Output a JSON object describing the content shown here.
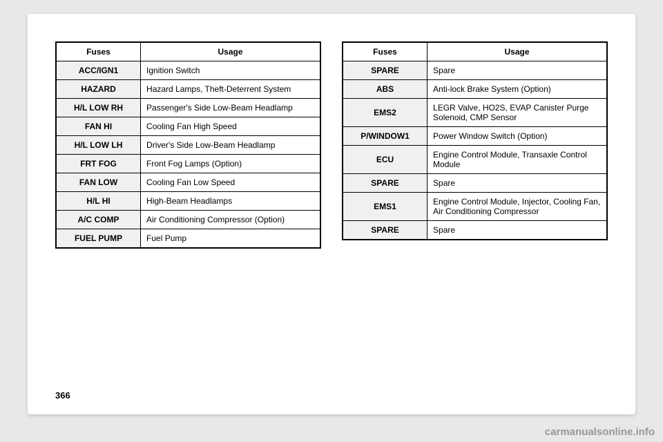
{
  "page_number": "366",
  "watermark": "carmanualsonline.info",
  "header": {
    "fuses": "Fuses",
    "usage": "Usage"
  },
  "left_table": [
    {
      "fuse": "ACC/IGN1",
      "usage": "Ignition Switch"
    },
    {
      "fuse": "HAZARD",
      "usage": "Hazard Lamps, Theft-Deterrent System"
    },
    {
      "fuse": "H/L LOW RH",
      "usage": "Passenger's Side Low-Beam Headlamp"
    },
    {
      "fuse": "FAN HI",
      "usage": "Cooling Fan High Speed"
    },
    {
      "fuse": "H/L LOW LH",
      "usage": "Driver's Side Low-Beam Headlamp"
    },
    {
      "fuse": "FRT FOG",
      "usage": "Front Fog Lamps (Option)"
    },
    {
      "fuse": "FAN LOW",
      "usage": "Cooling Fan Low Speed"
    },
    {
      "fuse": "H/L HI",
      "usage": "High-Beam Headlamps"
    },
    {
      "fuse": "A/C COMP",
      "usage": "Air Conditioning Compressor (Option)"
    },
    {
      "fuse": "FUEL PUMP",
      "usage": "Fuel Pump"
    }
  ],
  "right_table": [
    {
      "fuse": "SPARE",
      "usage": "Spare"
    },
    {
      "fuse": "ABS",
      "usage": "Anti-lock Brake System (Option)"
    },
    {
      "fuse": "EMS2",
      "usage": "LEGR Valve, HO2S, EVAP Canister Purge Solenoid, CMP Sensor"
    },
    {
      "fuse": "P/WINDOW1",
      "usage": "Power Window Switch (Option)"
    },
    {
      "fuse": "ECU",
      "usage": "Engine Control Module, Transaxle Control Module"
    },
    {
      "fuse": "SPARE",
      "usage": "Spare"
    },
    {
      "fuse": "EMS1",
      "usage": "Engine Control Module, Injector, Cooling Fan, Air Conditioning Compressor"
    },
    {
      "fuse": "SPARE",
      "usage": "Spare"
    }
  ],
  "styling": {
    "page_bg": "#ffffff",
    "outer_bg": "#e8e8e8",
    "border_color": "#000000",
    "fuse_cell_bg": "#f0f0f0",
    "font_size_cell": 12,
    "font_size_pagenum": 13
  }
}
